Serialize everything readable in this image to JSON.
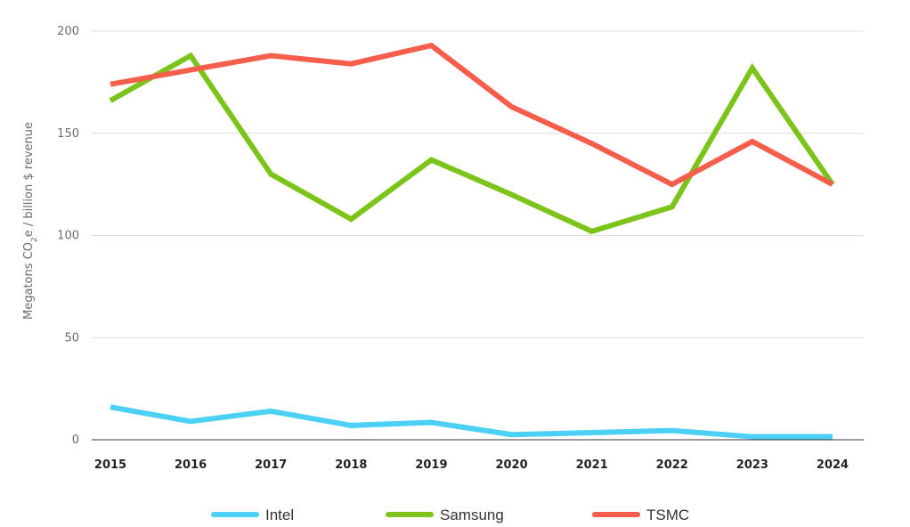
{
  "chart_data": {
    "type": "line",
    "title": "",
    "xlabel": "",
    "ylabel": "Megatons CO",
    "ylabel_subscript": "2",
    "ylabel_suffix": "e / billion $ revenue",
    "categories": [
      "2015",
      "2016",
      "2017",
      "2018",
      "2019",
      "2020",
      "2021",
      "2022",
      "2023",
      "2024"
    ],
    "yticks": [
      0,
      50,
      100,
      150,
      200
    ],
    "ylim": [
      0,
      200
    ],
    "grid": true,
    "legend_position": "bottom",
    "series": [
      {
        "name": "Intel",
        "color": "#4dd0f5",
        "values": [
          16,
          9,
          14,
          7,
          8.5,
          2.5,
          3.5,
          4.5,
          1.5,
          1.5
        ]
      },
      {
        "name": "Samsung",
        "color": "#7cc41a",
        "values": [
          166,
          188,
          130,
          108,
          137,
          120,
          102,
          114,
          182,
          125
        ]
      },
      {
        "name": "TSMC",
        "color": "#f65e4c",
        "values": [
          174,
          181,
          188,
          184,
          193,
          163,
          145,
          125,
          146,
          125
        ]
      }
    ]
  }
}
